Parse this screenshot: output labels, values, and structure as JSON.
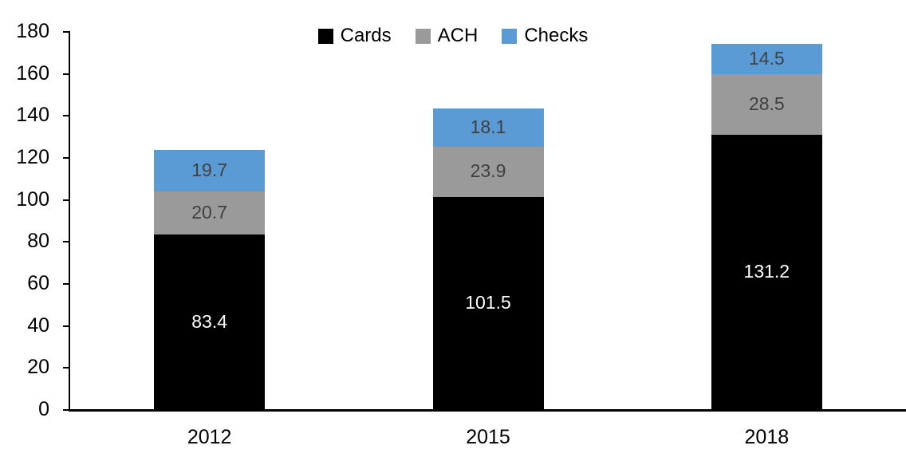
{
  "chart_data": {
    "type": "bar",
    "stacked": true,
    "title": "",
    "xlabel": "",
    "ylabel": "",
    "categories": [
      "2012",
      "2015",
      "2018"
    ],
    "series": [
      {
        "name": "Cards",
        "color": "#000000",
        "label_color": "#ffffff",
        "values": [
          83.4,
          101.5,
          131.2
        ]
      },
      {
        "name": "ACH",
        "color": "#9a9a9a",
        "label_color": "#404040",
        "values": [
          20.7,
          23.9,
          28.5
        ]
      },
      {
        "name": "Checks",
        "color": "#5b9bd5",
        "label_color": "#404040",
        "values": [
          19.7,
          18.1,
          14.5
        ]
      }
    ],
    "ylim": [
      0,
      180
    ],
    "yticks": [
      0,
      20,
      40,
      60,
      80,
      100,
      120,
      140,
      160,
      180
    ],
    "grid": false,
    "legend_position": "top-center",
    "axis_color": "#000000"
  }
}
